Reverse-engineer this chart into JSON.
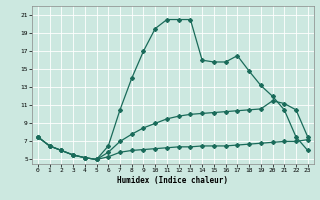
{
  "title": "",
  "xlabel": "Humidex (Indice chaleur)",
  "background_color": "#cce8e0",
  "line_color": "#1a6b5a",
  "grid_color": "#ffffff",
  "xlim": [
    -0.5,
    23.5
  ],
  "ylim": [
    4.5,
    22
  ],
  "yticks": [
    5,
    7,
    9,
    11,
    13,
    15,
    17,
    19,
    21
  ],
  "xticks": [
    0,
    1,
    2,
    3,
    4,
    5,
    6,
    7,
    8,
    9,
    10,
    11,
    12,
    13,
    14,
    15,
    16,
    17,
    18,
    19,
    20,
    21,
    22,
    23
  ],
  "line1_x": [
    0,
    1,
    2,
    3,
    4,
    5,
    6,
    7,
    8,
    9,
    10,
    11,
    12,
    13,
    14,
    15,
    16,
    17,
    18,
    19,
    20,
    21,
    22,
    23
  ],
  "line1_y": [
    7.5,
    6.5,
    6.0,
    5.5,
    5.2,
    5.0,
    6.5,
    10.5,
    14.0,
    17.0,
    19.5,
    20.5,
    20.5,
    20.5,
    16.0,
    15.8,
    15.8,
    16.5,
    14.8,
    13.2,
    12.0,
    10.5,
    7.5,
    6.0
  ],
  "line2_x": [
    0,
    1,
    2,
    3,
    4,
    5,
    6,
    7,
    8,
    9,
    10,
    11,
    12,
    13,
    14,
    15,
    16,
    17,
    18,
    19,
    20,
    21,
    22,
    23
  ],
  "line2_y": [
    7.5,
    6.5,
    6.0,
    5.5,
    5.2,
    5.0,
    5.3,
    5.8,
    6.0,
    6.1,
    6.2,
    6.3,
    6.4,
    6.4,
    6.5,
    6.5,
    6.5,
    6.6,
    6.7,
    6.8,
    6.9,
    7.0,
    7.0,
    7.2
  ],
  "line3_x": [
    0,
    1,
    2,
    3,
    4,
    5,
    6,
    7,
    8,
    9,
    10,
    11,
    12,
    13,
    14,
    15,
    16,
    17,
    18,
    19,
    20,
    21,
    22,
    23
  ],
  "line3_y": [
    7.5,
    6.5,
    6.0,
    5.5,
    5.2,
    5.0,
    5.8,
    7.0,
    7.8,
    8.5,
    9.0,
    9.5,
    9.8,
    10.0,
    10.1,
    10.2,
    10.3,
    10.4,
    10.5,
    10.6,
    11.5,
    11.2,
    10.5,
    7.5
  ]
}
